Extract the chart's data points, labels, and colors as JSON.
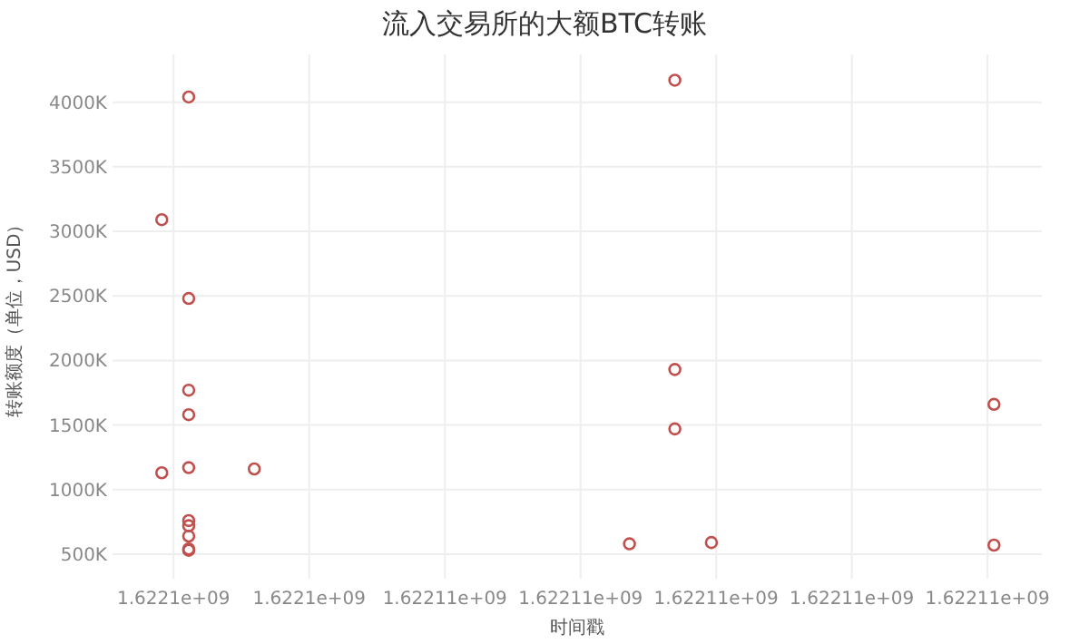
{
  "chart_data": {
    "type": "scatter",
    "title": "流入交易所的大额BTC转账",
    "xlabel": "时间戳",
    "ylabel": "转账额度（单位，USD）",
    "x": [
      1622102223,
      1622101826,
      1622102223,
      1622102223,
      1622102223,
      1622102223,
      1622101826,
      1622103190,
      1622102223,
      1622102223,
      1622102223,
      1622102223,
      1622102223,
      1622109390,
      1622109390,
      1622109390,
      1622108721,
      1622109929,
      1622114095,
      1622114095
    ],
    "series": [
      {
        "color": "#c0504d",
        "values": [
          4040000,
          3090000,
          2480000,
          1770000,
          1580000,
          1170000,
          1130000,
          1160000,
          760000,
          720000,
          640000,
          540000,
          530000,
          4170000,
          1930000,
          1470000,
          580000,
          590000,
          1660000,
          570000
        ]
      }
    ],
    "xlim": [
      1622101100,
      1622114800
    ],
    "ylim": [
      310000,
      4370000
    ],
    "xticks": [
      {
        "value": 1622102000,
        "label": "1.6221e+09"
      },
      {
        "value": 1622104000,
        "label": "1.6221e+09"
      },
      {
        "value": 1622106000,
        "label": "1.62211e+09"
      },
      {
        "value": 1622108000,
        "label": "1.62211e+09"
      },
      {
        "value": 1622110000,
        "label": "1.62211e+09"
      },
      {
        "value": 1622112000,
        "label": "1.62211e+09"
      },
      {
        "value": 1622114000,
        "label": "1.62211e+09"
      }
    ],
    "yticks": [
      {
        "value": 500000,
        "label": "500K"
      },
      {
        "value": 1000000,
        "label": "1000K"
      },
      {
        "value": 1500000,
        "label": "1500K"
      },
      {
        "value": 2000000,
        "label": "2000K"
      },
      {
        "value": 2500000,
        "label": "2500K"
      },
      {
        "value": 3000000,
        "label": "3000K"
      },
      {
        "value": 3500000,
        "label": "3500K"
      },
      {
        "value": 4000000,
        "label": "4000K"
      }
    ],
    "grid": true,
    "marker": "circle"
  }
}
